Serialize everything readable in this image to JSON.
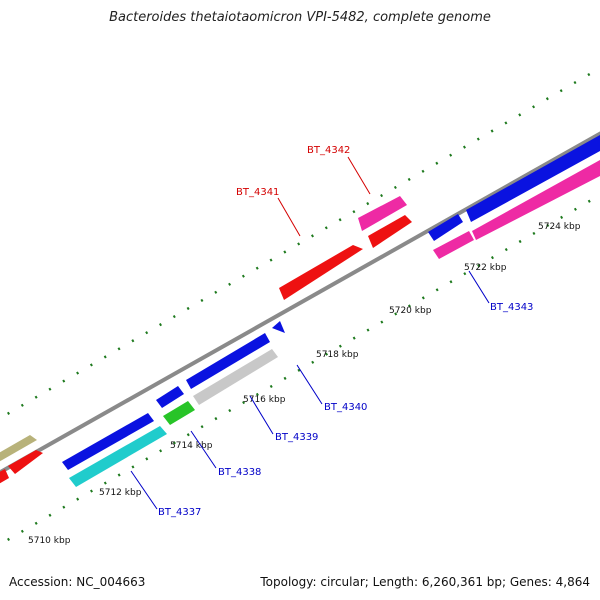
{
  "title": "Bacteroides thetaiotaomicron VPI-5482, complete genome",
  "accession": "Accession: NC_004663",
  "summary": "Topology: circular; Length: 6,260,361 bp; Genes: 4,864",
  "colors": {
    "backbone": "#8a8a8a",
    "tick": "#1e7a1e",
    "forward_label": "#d40000",
    "reverse_label": "#0000c8"
  },
  "scale_ticks": [
    {
      "label": "5710 kbp"
    },
    {
      "label": "5712 kbp"
    },
    {
      "label": "5714 kbp"
    },
    {
      "label": "5716 kbp"
    },
    {
      "label": "5718 kbp"
    },
    {
      "label": "5720 kbp"
    },
    {
      "label": "5722 kbp"
    },
    {
      "label": "5724 kbp"
    }
  ],
  "gene_labels": [
    {
      "text": "BT_4341",
      "strand": "forward"
    },
    {
      "text": "BT_4342",
      "strand": "forward"
    },
    {
      "text": "BT_4343",
      "strand": "reverse"
    },
    {
      "text": "BT_4340",
      "strand": "reverse"
    },
    {
      "text": "BT_4339",
      "strand": "reverse"
    },
    {
      "text": "BT_4338",
      "strand": "reverse"
    },
    {
      "text": "BT_4337",
      "strand": "reverse"
    }
  ]
}
